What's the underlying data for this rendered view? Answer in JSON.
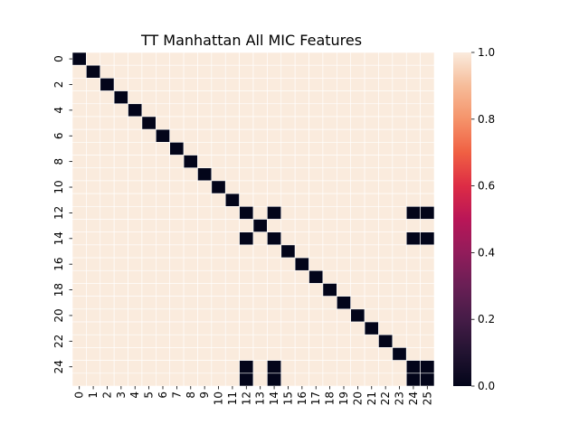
{
  "chart_data": {
    "type": "heatmap",
    "title": "TT Manhattan All MIC Features",
    "x_labels": [
      "0",
      "1",
      "2",
      "3",
      "4",
      "5",
      "6",
      "7",
      "8",
      "9",
      "10",
      "11",
      "12",
      "13",
      "14",
      "15",
      "16",
      "17",
      "18",
      "19",
      "20",
      "21",
      "22",
      "23",
      "24",
      "25"
    ],
    "y_tick_labels": [
      "0",
      "2",
      "4",
      "6",
      "8",
      "10",
      "12",
      "14",
      "16",
      "18",
      "20",
      "22",
      "24"
    ],
    "y_tick_indices": [
      0,
      2,
      4,
      6,
      8,
      10,
      12,
      14,
      16,
      18,
      20,
      22,
      24
    ],
    "value_range": [
      0.0,
      1.0
    ],
    "colorbar_ticks": [
      "0.0",
      "0.2",
      "0.4",
      "0.6",
      "0.8",
      "1.0"
    ],
    "colorbar_tick_values": [
      0.0,
      0.2,
      0.4,
      0.6,
      0.8,
      1.0
    ],
    "colormap": "rocket",
    "grid_line_color": "#ffffff",
    "default_value": 1.0,
    "zero_cells": [
      [
        0,
        0
      ],
      [
        1,
        1
      ],
      [
        2,
        2
      ],
      [
        3,
        3
      ],
      [
        4,
        4
      ],
      [
        5,
        5
      ],
      [
        6,
        6
      ],
      [
        7,
        7
      ],
      [
        8,
        8
      ],
      [
        9,
        9
      ],
      [
        10,
        10
      ],
      [
        11,
        11
      ],
      [
        12,
        12
      ],
      [
        12,
        14
      ],
      [
        12,
        24
      ],
      [
        12,
        25
      ],
      [
        13,
        13
      ],
      [
        14,
        12
      ],
      [
        14,
        14
      ],
      [
        14,
        24
      ],
      [
        14,
        25
      ],
      [
        15,
        15
      ],
      [
        16,
        16
      ],
      [
        17,
        17
      ],
      [
        18,
        18
      ],
      [
        19,
        19
      ],
      [
        20,
        20
      ],
      [
        21,
        21
      ],
      [
        22,
        22
      ],
      [
        23,
        23
      ],
      [
        24,
        12
      ],
      [
        24,
        14
      ],
      [
        24,
        24
      ],
      [
        24,
        25
      ],
      [
        25,
        12
      ],
      [
        25,
        14
      ],
      [
        25,
        24
      ],
      [
        25,
        25
      ]
    ]
  }
}
